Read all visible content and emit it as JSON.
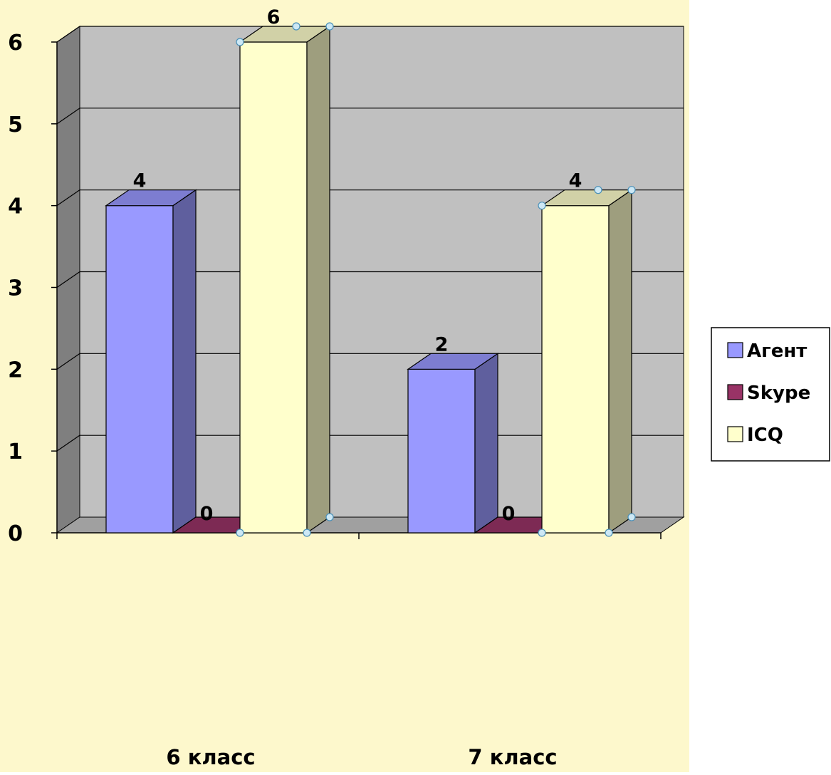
{
  "colors": {
    "page_background": "#fdf8cc",
    "wall": "#c0c0c0",
    "side_wall": "#7f7f7f",
    "floor": "#a0a0a0",
    "gridline": "#000000"
  },
  "chart_data": {
    "type": "bar",
    "style": "3d-clustered-column",
    "categories": [
      "6 класс",
      "7 класс"
    ],
    "series": [
      {
        "name": "Агент",
        "values": [
          4,
          2
        ],
        "color": "#9999ff"
      },
      {
        "name": "Skype",
        "values": [
          0,
          0
        ],
        "color": "#993366"
      },
      {
        "name": "ICQ",
        "values": [
          6,
          4
        ],
        "color": "#ffffcc"
      }
    ],
    "y_ticks": [
      0,
      1,
      2,
      3,
      4,
      5,
      6
    ],
    "ylim": [
      0,
      6
    ],
    "grid": true,
    "legend_position": "right",
    "data_labels": true,
    "title": "",
    "xlabel": "",
    "ylabel": ""
  }
}
